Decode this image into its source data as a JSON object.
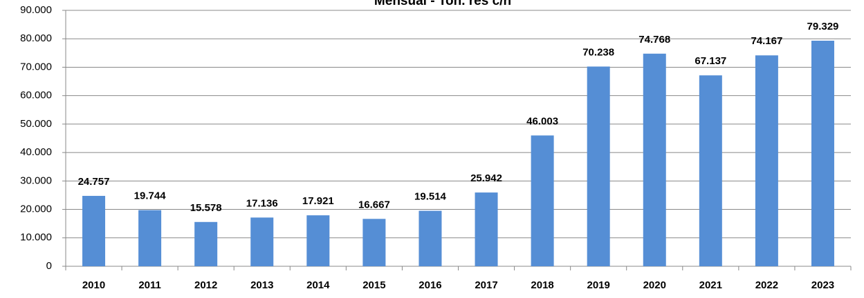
{
  "chart_data": {
    "type": "bar",
    "title": "Mensual - Ton. res c/h",
    "categories": [
      "2010",
      "2011",
      "2012",
      "2013",
      "2014",
      "2015",
      "2016",
      "2017",
      "2018",
      "2019",
      "2020",
      "2021",
      "2022",
      "2023"
    ],
    "values": [
      24757,
      19744,
      15578,
      17136,
      17921,
      16667,
      19514,
      25942,
      46003,
      70238,
      74768,
      67137,
      74167,
      79329
    ],
    "value_labels": [
      "24.757",
      "19.744",
      "15.578",
      "17.136",
      "17.921",
      "16.667",
      "19.514",
      "25.942",
      "46.003",
      "70.238",
      "74.768",
      "67.137",
      "74.167",
      "79.329"
    ],
    "color": "#558ed5",
    "ylim": [
      0,
      90000
    ],
    "yticks": [
      0,
      {
        "value": 10000,
        "label": "10.000"
      },
      {
        "value": 20000,
        "label": "20.000"
      },
      {
        "value": 30000,
        "label": "30.000"
      },
      {
        "value": 40000,
        "label": "40.000"
      },
      {
        "value": 50000,
        "label": "50.000"
      },
      {
        "value": 60000,
        "label": "60.000"
      },
      {
        "value": 70000,
        "label": "70.000"
      },
      {
        "value": 80000,
        "label": "80.000"
      },
      {
        "value": 90000,
        "label": "90.000"
      }
    ],
    "grid": true
  }
}
